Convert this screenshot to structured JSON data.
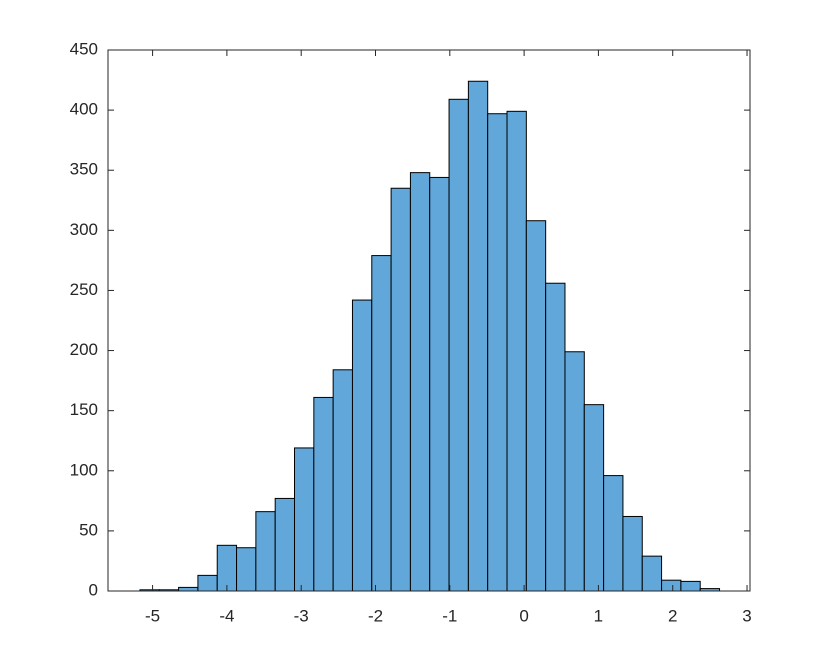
{
  "chart_data": {
    "type": "histogram",
    "bins": [
      -5.17,
      -4.91,
      -4.65,
      -4.39,
      -4.13,
      -3.87,
      -3.61,
      -3.35,
      -3.09,
      -2.83,
      -2.57,
      -2.31,
      -2.05,
      -1.79,
      -1.53,
      -1.27,
      -1.01,
      -0.75,
      -0.49,
      -0.23,
      0.03,
      0.29,
      0.55,
      0.81,
      1.07,
      1.33,
      1.59,
      1.85,
      2.11,
      2.37,
      2.63
    ],
    "values": [
      1,
      1,
      3,
      13,
      38,
      36,
      66,
      77,
      119,
      161,
      184,
      242,
      279,
      335,
      348,
      344,
      409,
      424,
      397,
      399,
      308,
      256,
      199,
      155,
      96,
      62,
      29,
      9,
      8,
      2
    ],
    "color": "#61a7d9",
    "xlim": [
      -5.6,
      3.04
    ],
    "xticks": [
      -5,
      -4,
      -3,
      -2,
      -1,
      0,
      1,
      2,
      3
    ],
    "ylim": [
      0,
      450
    ],
    "yticks": [
      0,
      50,
      100,
      150,
      200,
      250,
      300,
      350,
      400,
      450
    ]
  }
}
